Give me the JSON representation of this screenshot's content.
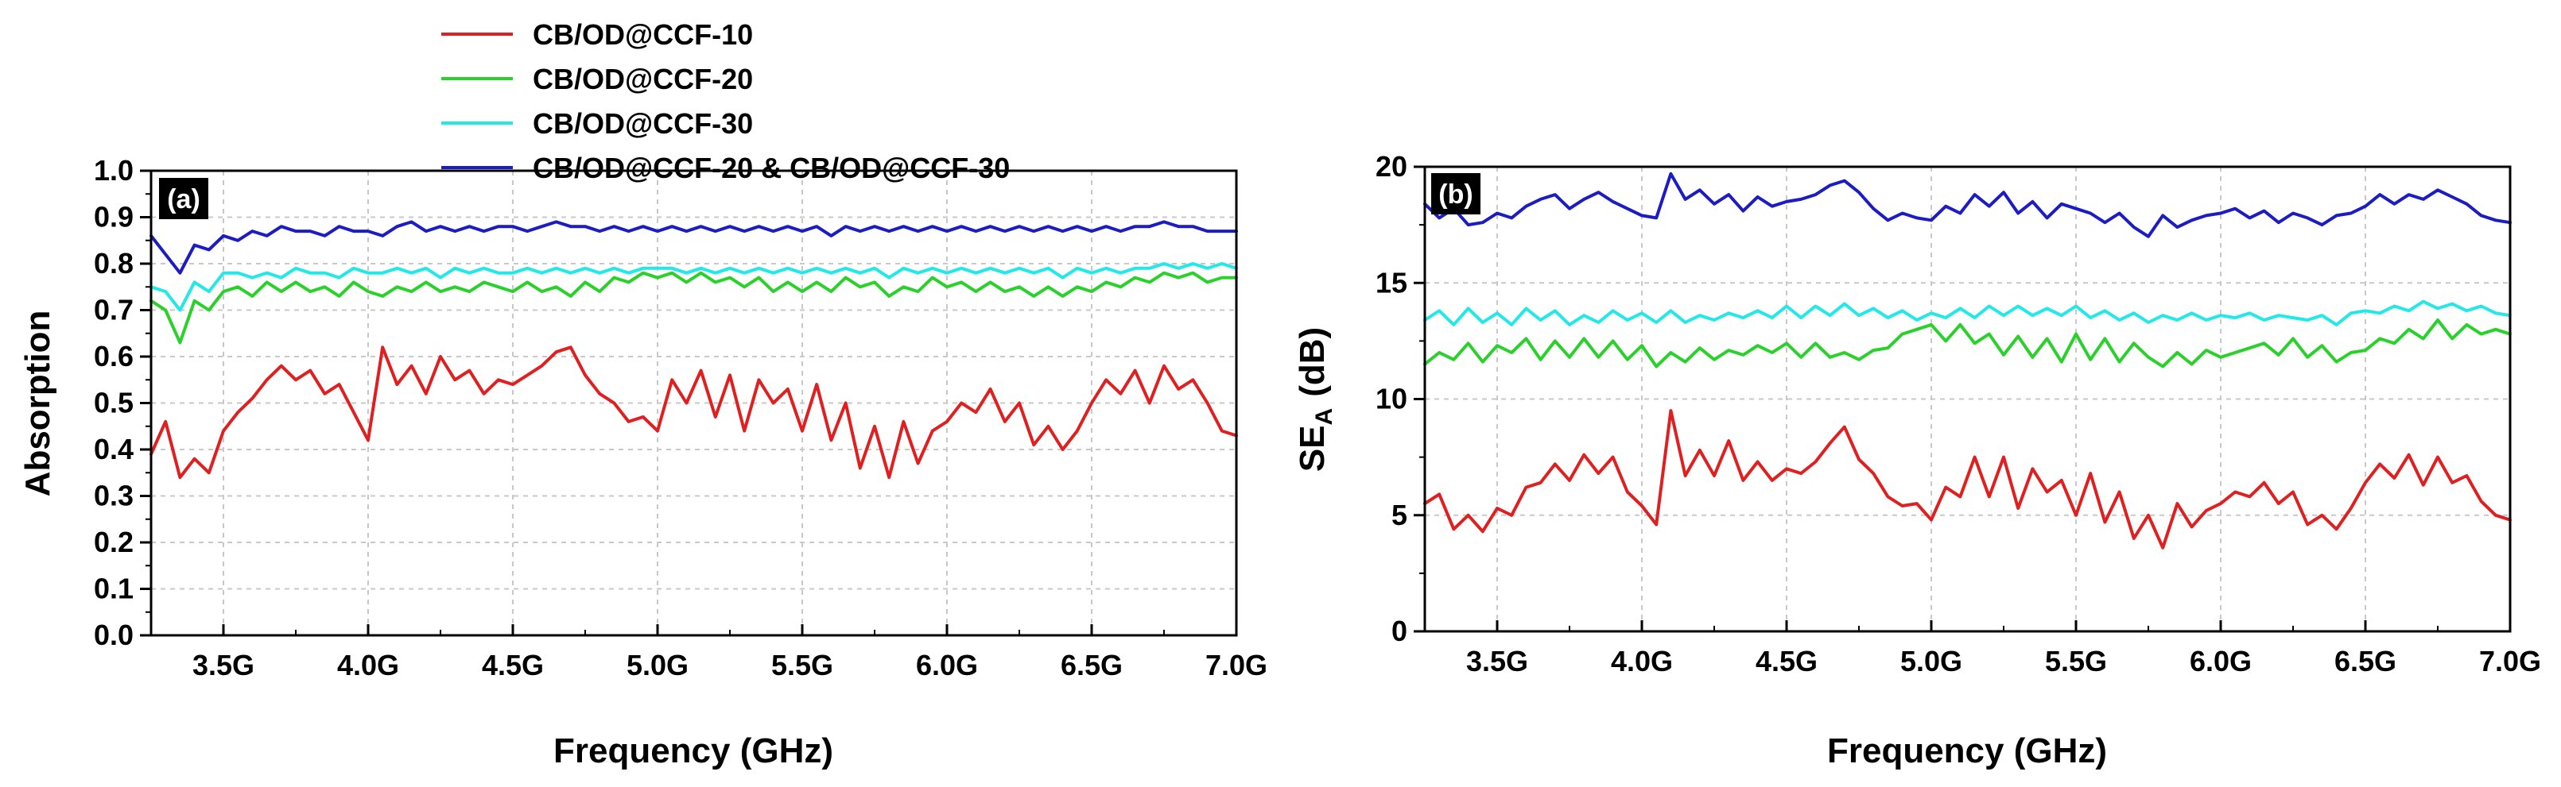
{
  "legend": {
    "placement": "top-left",
    "items": [
      {
        "label": "CB/OD@CCF-10",
        "color": "#e02020"
      },
      {
        "label": "CB/OD@CCF-20",
        "color": "#2ad12a"
      },
      {
        "label": "CB/OD@CCF-30",
        "color": "#22e8e8"
      },
      {
        "label": "CB/OD@CCF-20 & CB/OD@CCF-30",
        "color": "#1c1cc4"
      }
    ]
  },
  "chart_data": [
    {
      "type": "line",
      "panel": "(a)",
      "xlabel": "Frequency (GHz)",
      "ylabel": "Absorption",
      "xlim": [
        3.25,
        7.0
      ],
      "ylim": [
        0.0,
        1.0
      ],
      "grid": true,
      "xticks": [
        3.5,
        4.0,
        4.5,
        5.0,
        5.5,
        6.0,
        6.5,
        7.0
      ],
      "xtick_labels": [
        "3.5G",
        "4.0G",
        "4.5G",
        "5.0G",
        "5.5G",
        "6.0G",
        "6.5G",
        "7.0G"
      ],
      "yticks": [
        0.0,
        0.1,
        0.2,
        0.3,
        0.4,
        0.5,
        0.6,
        0.7,
        0.8,
        0.9,
        1.0
      ],
      "ytick_labels": [
        "0.0",
        "0.1",
        "0.2",
        "0.3",
        "0.4",
        "0.5",
        "0.6",
        "0.7",
        "0.8",
        "0.9",
        "1.0"
      ],
      "x": [
        3.25,
        3.3,
        3.35,
        3.4,
        3.45,
        3.5,
        3.55,
        3.6,
        3.65,
        3.7,
        3.75,
        3.8,
        3.85,
        3.9,
        3.95,
        4.0,
        4.05,
        4.1,
        4.15,
        4.2,
        4.25,
        4.3,
        4.35,
        4.4,
        4.45,
        4.5,
        4.55,
        4.6,
        4.65,
        4.7,
        4.75,
        4.8,
        4.85,
        4.9,
        4.95,
        5.0,
        5.05,
        5.1,
        5.15,
        5.2,
        5.25,
        5.3,
        5.35,
        5.4,
        5.45,
        5.5,
        5.55,
        5.6,
        5.65,
        5.7,
        5.75,
        5.8,
        5.85,
        5.9,
        5.95,
        6.0,
        6.05,
        6.1,
        6.15,
        6.2,
        6.25,
        6.3,
        6.35,
        6.4,
        6.45,
        6.5,
        6.55,
        6.6,
        6.65,
        6.7,
        6.75,
        6.8,
        6.85,
        6.9,
        6.95,
        7.0
      ],
      "series": [
        {
          "name": "CB/OD@CCF-10",
          "color": "#e02020",
          "values": [
            0.39,
            0.46,
            0.34,
            0.38,
            0.35,
            0.44,
            0.48,
            0.51,
            0.55,
            0.58,
            0.55,
            0.57,
            0.52,
            0.54,
            0.48,
            0.42,
            0.62,
            0.54,
            0.58,
            0.52,
            0.6,
            0.55,
            0.57,
            0.52,
            0.55,
            0.54,
            0.56,
            0.58,
            0.61,
            0.62,
            0.56,
            0.52,
            0.5,
            0.46,
            0.47,
            0.44,
            0.55,
            0.5,
            0.57,
            0.47,
            0.56,
            0.44,
            0.55,
            0.5,
            0.53,
            0.44,
            0.54,
            0.42,
            0.5,
            0.36,
            0.45,
            0.34,
            0.46,
            0.37,
            0.44,
            0.46,
            0.5,
            0.48,
            0.53,
            0.46,
            0.5,
            0.41,
            0.45,
            0.4,
            0.44,
            0.5,
            0.55,
            0.52,
            0.57,
            0.5,
            0.58,
            0.53,
            0.55,
            0.5,
            0.44,
            0.43
          ]
        },
        {
          "name": "CB/OD@CCF-20",
          "color": "#2ad12a",
          "values": [
            0.72,
            0.7,
            0.63,
            0.72,
            0.7,
            0.74,
            0.75,
            0.73,
            0.76,
            0.74,
            0.76,
            0.74,
            0.75,
            0.73,
            0.76,
            0.74,
            0.73,
            0.75,
            0.74,
            0.76,
            0.74,
            0.75,
            0.74,
            0.76,
            0.75,
            0.74,
            0.76,
            0.74,
            0.75,
            0.73,
            0.76,
            0.74,
            0.77,
            0.76,
            0.78,
            0.77,
            0.78,
            0.76,
            0.78,
            0.76,
            0.77,
            0.75,
            0.77,
            0.74,
            0.76,
            0.74,
            0.76,
            0.74,
            0.77,
            0.75,
            0.76,
            0.73,
            0.75,
            0.74,
            0.77,
            0.75,
            0.76,
            0.74,
            0.76,
            0.74,
            0.75,
            0.73,
            0.75,
            0.73,
            0.75,
            0.74,
            0.76,
            0.75,
            0.77,
            0.76,
            0.78,
            0.77,
            0.78,
            0.76,
            0.77,
            0.77
          ]
        },
        {
          "name": "CB/OD@CCF-30",
          "color": "#22e8e8",
          "values": [
            0.75,
            0.74,
            0.7,
            0.76,
            0.74,
            0.78,
            0.78,
            0.77,
            0.78,
            0.77,
            0.79,
            0.78,
            0.78,
            0.77,
            0.79,
            0.78,
            0.78,
            0.79,
            0.78,
            0.79,
            0.77,
            0.79,
            0.78,
            0.79,
            0.78,
            0.78,
            0.79,
            0.78,
            0.79,
            0.78,
            0.79,
            0.78,
            0.79,
            0.78,
            0.79,
            0.79,
            0.79,
            0.78,
            0.79,
            0.78,
            0.79,
            0.78,
            0.79,
            0.78,
            0.79,
            0.78,
            0.79,
            0.78,
            0.79,
            0.78,
            0.79,
            0.77,
            0.79,
            0.78,
            0.79,
            0.78,
            0.79,
            0.78,
            0.79,
            0.78,
            0.79,
            0.78,
            0.79,
            0.77,
            0.79,
            0.78,
            0.79,
            0.78,
            0.79,
            0.79,
            0.8,
            0.79,
            0.8,
            0.79,
            0.8,
            0.79
          ]
        },
        {
          "name": "CB/OD@CCF-20 & CB/OD@CCF-30",
          "color": "#1c1cc4",
          "values": [
            0.86,
            0.82,
            0.78,
            0.84,
            0.83,
            0.86,
            0.85,
            0.87,
            0.86,
            0.88,
            0.87,
            0.87,
            0.86,
            0.88,
            0.87,
            0.87,
            0.86,
            0.88,
            0.89,
            0.87,
            0.88,
            0.87,
            0.88,
            0.87,
            0.88,
            0.88,
            0.87,
            0.88,
            0.89,
            0.88,
            0.88,
            0.87,
            0.88,
            0.87,
            0.88,
            0.87,
            0.88,
            0.87,
            0.88,
            0.87,
            0.88,
            0.87,
            0.88,
            0.87,
            0.88,
            0.87,
            0.88,
            0.86,
            0.88,
            0.87,
            0.88,
            0.87,
            0.88,
            0.87,
            0.88,
            0.87,
            0.88,
            0.87,
            0.88,
            0.87,
            0.88,
            0.87,
            0.88,
            0.87,
            0.88,
            0.87,
            0.88,
            0.87,
            0.88,
            0.88,
            0.89,
            0.88,
            0.88,
            0.87,
            0.87,
            0.87
          ]
        }
      ]
    },
    {
      "type": "line",
      "panel": "(b)",
      "xlabel": "Frequency (GHz)",
      "ylabel": "SE",
      "ylabel_sub": "A",
      "ylabel_unit": "(dB)",
      "xlim": [
        3.25,
        7.0
      ],
      "ylim": [
        0,
        20
      ],
      "grid": true,
      "xticks": [
        3.5,
        4.0,
        4.5,
        5.0,
        5.5,
        6.0,
        6.5,
        7.0
      ],
      "xtick_labels": [
        "3.5G",
        "4.0G",
        "4.5G",
        "5.0G",
        "5.5G",
        "6.0G",
        "6.5G",
        "7.0G"
      ],
      "yticks": [
        0,
        5,
        10,
        15,
        20
      ],
      "ytick_labels": [
        "0",
        "5",
        "10",
        "15",
        "20"
      ],
      "x": [
        3.25,
        3.3,
        3.35,
        3.4,
        3.45,
        3.5,
        3.55,
        3.6,
        3.65,
        3.7,
        3.75,
        3.8,
        3.85,
        3.9,
        3.95,
        4.0,
        4.05,
        4.1,
        4.15,
        4.2,
        4.25,
        4.3,
        4.35,
        4.4,
        4.45,
        4.5,
        4.55,
        4.6,
        4.65,
        4.7,
        4.75,
        4.8,
        4.85,
        4.9,
        4.95,
        5.0,
        5.05,
        5.1,
        5.15,
        5.2,
        5.25,
        5.3,
        5.35,
        5.4,
        5.45,
        5.5,
        5.55,
        5.6,
        5.65,
        5.7,
        5.75,
        5.8,
        5.85,
        5.9,
        5.95,
        6.0,
        6.05,
        6.1,
        6.15,
        6.2,
        6.25,
        6.3,
        6.35,
        6.4,
        6.45,
        6.5,
        6.55,
        6.6,
        6.65,
        6.7,
        6.75,
        6.8,
        6.85,
        6.9,
        6.95,
        7.0
      ],
      "series": [
        {
          "name": "CB/OD@CCF-10",
          "color": "#e02020",
          "values": [
            5.5,
            5.9,
            4.4,
            5.0,
            4.3,
            5.3,
            5.0,
            6.2,
            6.4,
            7.2,
            6.5,
            7.6,
            6.8,
            7.5,
            6.0,
            5.4,
            4.6,
            9.5,
            6.7,
            7.8,
            6.7,
            8.2,
            6.5,
            7.3,
            6.5,
            7.0,
            6.8,
            7.3,
            8.1,
            8.8,
            7.4,
            6.8,
            5.8,
            5.4,
            5.5,
            4.8,
            6.2,
            5.8,
            7.5,
            5.8,
            7.5,
            5.3,
            7.0,
            6.0,
            6.5,
            5.0,
            6.8,
            4.7,
            6.0,
            4.0,
            5.0,
            3.6,
            5.5,
            4.5,
            5.2,
            5.5,
            6.0,
            5.8,
            6.4,
            5.5,
            6.0,
            4.6,
            5.0,
            4.4,
            5.3,
            6.4,
            7.2,
            6.6,
            7.6,
            6.3,
            7.5,
            6.4,
            6.7,
            5.6,
            5.0,
            4.8
          ]
        },
        {
          "name": "CB/OD@CCF-20",
          "color": "#2ad12a",
          "values": [
            11.5,
            12.0,
            11.7,
            12.4,
            11.6,
            12.3,
            12.0,
            12.6,
            11.7,
            12.5,
            11.8,
            12.6,
            11.8,
            12.5,
            11.7,
            12.3,
            11.4,
            12.0,
            11.6,
            12.2,
            11.7,
            12.1,
            11.9,
            12.3,
            12.0,
            12.4,
            11.8,
            12.4,
            11.8,
            12.0,
            11.7,
            12.1,
            12.2,
            12.8,
            13.0,
            13.2,
            12.5,
            13.2,
            12.4,
            12.8,
            11.9,
            12.7,
            11.8,
            12.6,
            11.6,
            12.8,
            11.7,
            12.6,
            11.6,
            12.4,
            11.8,
            11.4,
            12.0,
            11.5,
            12.1,
            11.8,
            12.0,
            12.2,
            12.4,
            11.9,
            12.6,
            11.8,
            12.3,
            11.6,
            12.0,
            12.1,
            12.6,
            12.4,
            13.0,
            12.6,
            13.4,
            12.6,
            13.2,
            12.8,
            13.0,
            12.8
          ]
        },
        {
          "name": "CB/OD@CCF-30",
          "color": "#22e8e8",
          "values": [
            13.4,
            13.8,
            13.2,
            13.9,
            13.3,
            13.7,
            13.2,
            13.9,
            13.4,
            13.8,
            13.2,
            13.6,
            13.3,
            13.8,
            13.4,
            13.7,
            13.3,
            13.8,
            13.3,
            13.6,
            13.4,
            13.7,
            13.5,
            13.8,
            13.5,
            14.0,
            13.5,
            14.0,
            13.6,
            14.1,
            13.6,
            13.9,
            13.5,
            13.8,
            13.4,
            13.7,
            13.5,
            13.9,
            13.5,
            14.0,
            13.6,
            14.0,
            13.6,
            13.9,
            13.6,
            14.0,
            13.5,
            13.8,
            13.4,
            13.7,
            13.3,
            13.6,
            13.4,
            13.7,
            13.4,
            13.6,
            13.5,
            13.7,
            13.4,
            13.6,
            13.5,
            13.4,
            13.6,
            13.2,
            13.7,
            13.8,
            13.7,
            14.0,
            13.8,
            14.2,
            13.9,
            14.1,
            13.8,
            14.0,
            13.7,
            13.6
          ]
        },
        {
          "name": "CB/OD@CCF-20 & CB/OD@CCF-30",
          "color": "#1c1cc4",
          "values": [
            18.4,
            17.8,
            18.2,
            17.5,
            17.6,
            18.0,
            17.8,
            18.3,
            18.6,
            18.8,
            18.2,
            18.6,
            18.9,
            18.5,
            18.2,
            17.9,
            17.8,
            19.7,
            18.6,
            19.0,
            18.4,
            18.8,
            18.1,
            18.7,
            18.3,
            18.5,
            18.6,
            18.8,
            19.2,
            19.4,
            18.9,
            18.2,
            17.7,
            18.0,
            17.8,
            17.7,
            18.3,
            18.0,
            18.8,
            18.3,
            18.9,
            18.0,
            18.5,
            17.8,
            18.4,
            18.2,
            18.0,
            17.6,
            18.0,
            17.4,
            17.0,
            17.9,
            17.4,
            17.7,
            17.9,
            18.0,
            18.2,
            17.8,
            18.1,
            17.6,
            18.0,
            17.8,
            17.5,
            17.9,
            18.0,
            18.3,
            18.8,
            18.4,
            18.8,
            18.6,
            19.0,
            18.7,
            18.4,
            17.9,
            17.7,
            17.6
          ]
        }
      ]
    }
  ]
}
